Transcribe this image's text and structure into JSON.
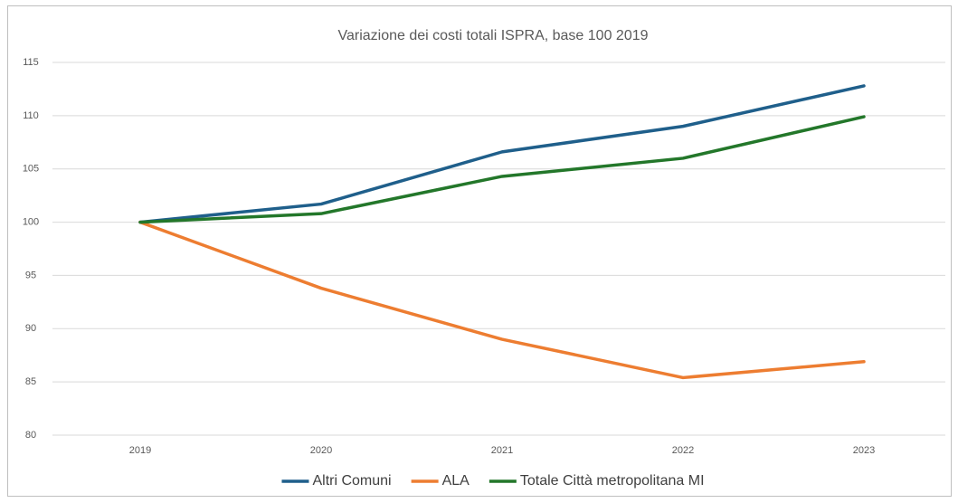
{
  "chart_data": {
    "type": "line",
    "title": "Variazione dei costi totali ISPRA, base 100 2019",
    "categories": [
      "2019",
      "2020",
      "2021",
      "2022",
      "2023"
    ],
    "series": [
      {
        "name": "Altri Comuni",
        "color": "#1f5f8b",
        "values": [
          100,
          101.7,
          106.6,
          109.0,
          112.8
        ]
      },
      {
        "name": "ALA",
        "color": "#ed7d31",
        "values": [
          100,
          93.8,
          89.0,
          85.4,
          86.9
        ]
      },
      {
        "name": "Totale Città metropolitana MI",
        "color": "#23772a",
        "values": [
          100,
          100.8,
          104.3,
          106.0,
          109.9
        ]
      }
    ],
    "ylim": [
      80,
      115
    ],
    "yticks": [
      80,
      85,
      90,
      95,
      100,
      105,
      110,
      115
    ],
    "grid": true,
    "legend": "bottom"
  }
}
